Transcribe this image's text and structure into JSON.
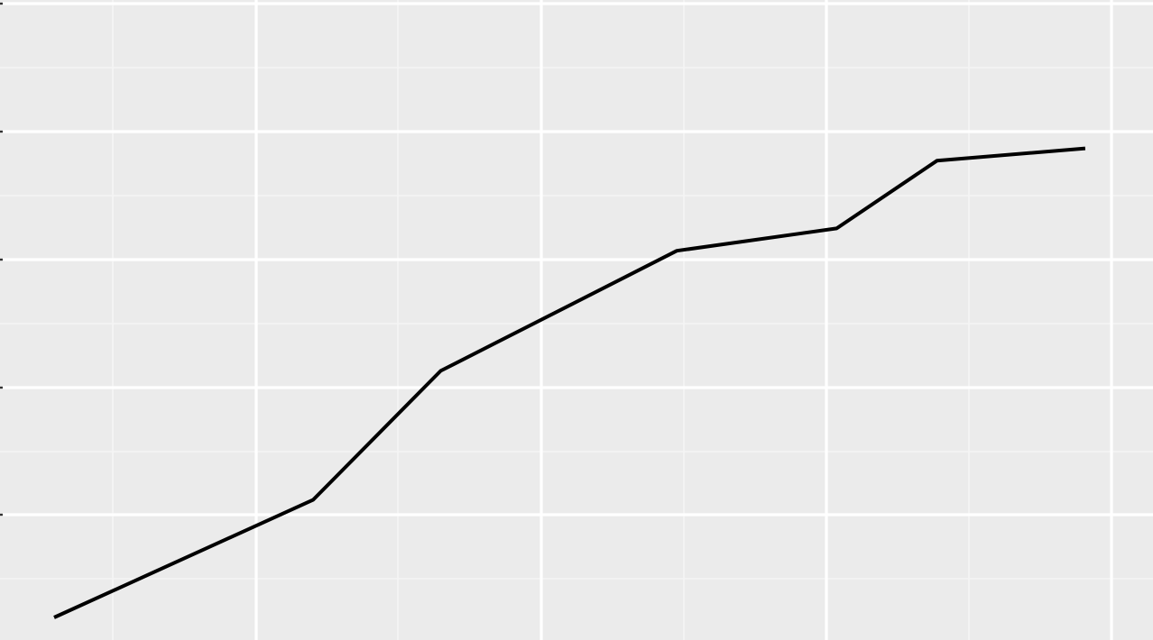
{
  "chart_data": {
    "type": "line",
    "title": "",
    "xlabel": "",
    "ylabel": "",
    "grid": true,
    "xlim": [
      0,
      1
    ],
    "ylim": [
      0,
      1
    ],
    "x": [
      0.0,
      0.248,
      0.37,
      0.596,
      0.749,
      0.845,
      0.987
    ],
    "values": [
      0.0,
      0.2,
      0.419,
      0.623,
      0.661,
      0.776,
      0.797
    ]
  },
  "colors": {
    "panel_background": "#EBEBEB",
    "grid_major": "#FFFFFF",
    "grid_minor": "#F5F5F5",
    "line": "#000000"
  }
}
